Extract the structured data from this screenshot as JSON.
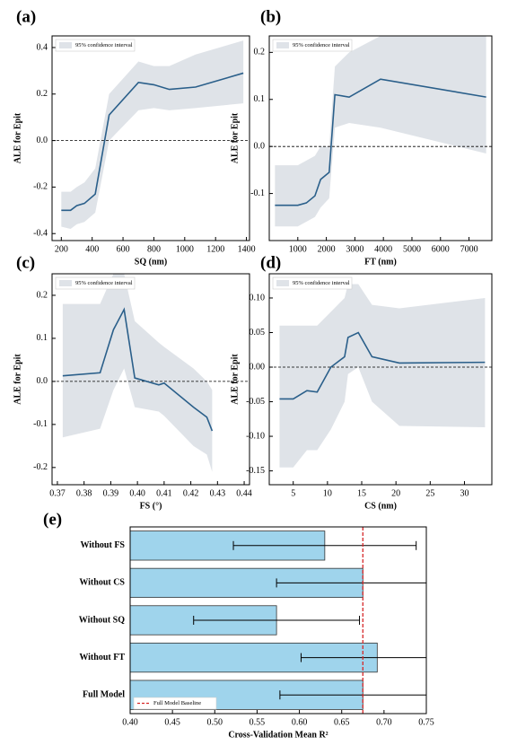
{
  "chart_data": [
    {
      "type": "line",
      "panel": "(a)",
      "xlabel": "SQ (nm)",
      "ylabel": "ALE for Epit",
      "x": [
        200,
        260,
        300,
        350,
        420,
        510,
        700,
        800,
        900,
        1070,
        1380
      ],
      "values": [
        -0.3,
        -0.3,
        -0.28,
        -0.27,
        -0.23,
        0.11,
        0.25,
        0.24,
        0.22,
        0.23,
        0.29
      ],
      "color": "#2a5f8a",
      "band": {
        "name": "95% confidence interval",
        "color": "#dfe3e8",
        "lower": [
          -0.37,
          -0.38,
          -0.36,
          -0.35,
          -0.31,
          0.0,
          0.13,
          0.14,
          0.13,
          0.14,
          0.16
        ],
        "upper": [
          -0.22,
          -0.22,
          -0.2,
          -0.18,
          -0.12,
          0.2,
          0.34,
          0.32,
          0.32,
          0.37,
          0.43
        ]
      },
      "hline": 0,
      "xlim": [
        140,
        1420
      ],
      "xticks": [
        200,
        400,
        600,
        800,
        1000,
        1200,
        1400
      ],
      "ylim": [
        -0.43,
        0.45
      ],
      "yticks": [
        -0.4,
        -0.2,
        {
          "value": 0,
          "label": "0.0"
        },
        0.2,
        0.4
      ]
    },
    {
      "type": "line",
      "panel": "(b)",
      "xlabel": "FT (nm)",
      "ylabel": "ALE for Epit",
      "x": [
        200,
        1000,
        1300,
        1600,
        1800,
        2100,
        2300,
        2800,
        3900,
        7600
      ],
      "values": [
        -0.125,
        -0.125,
        -0.12,
        -0.105,
        -0.07,
        -0.055,
        0.11,
        0.105,
        0.143,
        0.105
      ],
      "color": "#2a5f8a",
      "band": {
        "name": "95% confidence interval",
        "color": "#dfe3e8",
        "lower": [
          -0.17,
          -0.17,
          -0.16,
          -0.15,
          -0.13,
          -0.11,
          0.04,
          0.05,
          0.04,
          -0.015
        ],
        "upper": [
          -0.04,
          -0.04,
          -0.03,
          -0.02,
          0.0,
          0.0,
          0.17,
          0.2,
          0.235,
          0.235
        ]
      },
      "hline": 0,
      "xlim": [
        0,
        7800
      ],
      "xticks": [
        1000,
        2000,
        3000,
        4000,
        5000,
        6000,
        7000
      ],
      "ylim": [
        -0.2,
        0.235
      ],
      "yticks": [
        -0.1,
        {
          "value": 0,
          "label": "0.0"
        },
        0.1,
        0.2
      ]
    },
    {
      "type": "line",
      "panel": "(c)",
      "xlabel": "FS (°)",
      "ylabel": "ALE for Epit",
      "x": [
        0.372,
        0.386,
        0.391,
        0.395,
        0.399,
        0.408,
        0.41,
        0.421,
        0.426,
        0.428
      ],
      "values": [
        0.013,
        0.02,
        0.12,
        0.167,
        0.008,
        -0.008,
        -0.004,
        -0.06,
        -0.083,
        -0.115
      ],
      "color": "#2a5f8a",
      "band": {
        "name": "95% confidence interval",
        "color": "#dfe3e8",
        "lower": [
          -0.13,
          -0.11,
          -0.02,
          0.03,
          -0.06,
          -0.07,
          -0.08,
          -0.15,
          -0.17,
          -0.21
        ],
        "upper": [
          0.18,
          0.18,
          0.25,
          0.25,
          0.14,
          0.09,
          0.08,
          0.03,
          0.0,
          -0.02
        ]
      },
      "hline": 0,
      "xlim": [
        0.368,
        0.442
      ],
      "xticks": [
        0.37,
        0.38,
        0.39,
        {
          "value": 0.4,
          "label": "0.40"
        },
        0.41,
        0.42,
        0.43,
        0.44
      ],
      "ylim": [
        -0.24,
        0.25
      ],
      "yticks": [
        -0.2,
        -0.1,
        {
          "value": 0,
          "label": "0.0"
        },
        0.1,
        0.2
      ]
    },
    {
      "type": "line",
      "panel": "(d)",
      "xlabel": "CS (nm)",
      "ylabel": "ALE for Epit",
      "x": [
        3,
        5,
        7,
        8.5,
        10.5,
        12.5,
        13,
        14.5,
        16.5,
        20.5,
        33
      ],
      "values": [
        -0.046,
        -0.046,
        -0.034,
        -0.036,
        0.0,
        0.015,
        0.043,
        0.05,
        0.015,
        0.006,
        0.007
      ],
      "color": "#2a5f8a",
      "band": {
        "name": "95% confidence interval",
        "color": "#dfe3e8",
        "lower": [
          -0.145,
          -0.145,
          -0.12,
          -0.12,
          -0.09,
          -0.05,
          -0.01,
          0.0,
          -0.05,
          -0.085,
          -0.087
        ],
        "upper": [
          0.06,
          0.06,
          0.06,
          0.06,
          0.08,
          0.1,
          0.12,
          0.12,
          0.09,
          0.085,
          0.1
        ]
      },
      "hline": 0,
      "xlim": [
        1.5,
        34
      ],
      "xticks": [
        5,
        10,
        15,
        20,
        25,
        30
      ],
      "ylim": [
        -0.17,
        0.135
      ],
      "yticks": [
        -0.15,
        {
          "value": -0.1,
          "label": "-0.10"
        },
        -0.05,
        {
          "value": 0,
          "label": "0.00"
        },
        0.05,
        {
          "value": 0.1,
          "label": "0.10"
        }
      ]
    },
    {
      "type": "hbar",
      "panel": "(e)",
      "xlabel": "Cross-Validation Mean R²",
      "categories": [
        "Without FS",
        "Without CS",
        "Without SQ",
        "Without FT",
        "Full Model"
      ],
      "values": [
        0.63,
        0.675,
        0.573,
        0.692,
        0.675
      ],
      "errors": [
        0.108,
        0.102,
        0.098,
        0.09,
        0.098
      ],
      "color": "#9fd4ec",
      "baseline": {
        "name": "Full Model Baseline",
        "value": 0.675,
        "color": "#d62728"
      },
      "xlim": [
        0.4,
        0.75
      ],
      "xticks": [
        {
          "value": 0.4,
          "label": "0.40"
        },
        0.45,
        {
          "value": 0.5,
          "label": "0.50"
        },
        0.55,
        {
          "value": 0.6,
          "label": "0.60"
        },
        0.65,
        {
          "value": 0.7,
          "label": "0.70"
        },
        0.75
      ]
    }
  ]
}
